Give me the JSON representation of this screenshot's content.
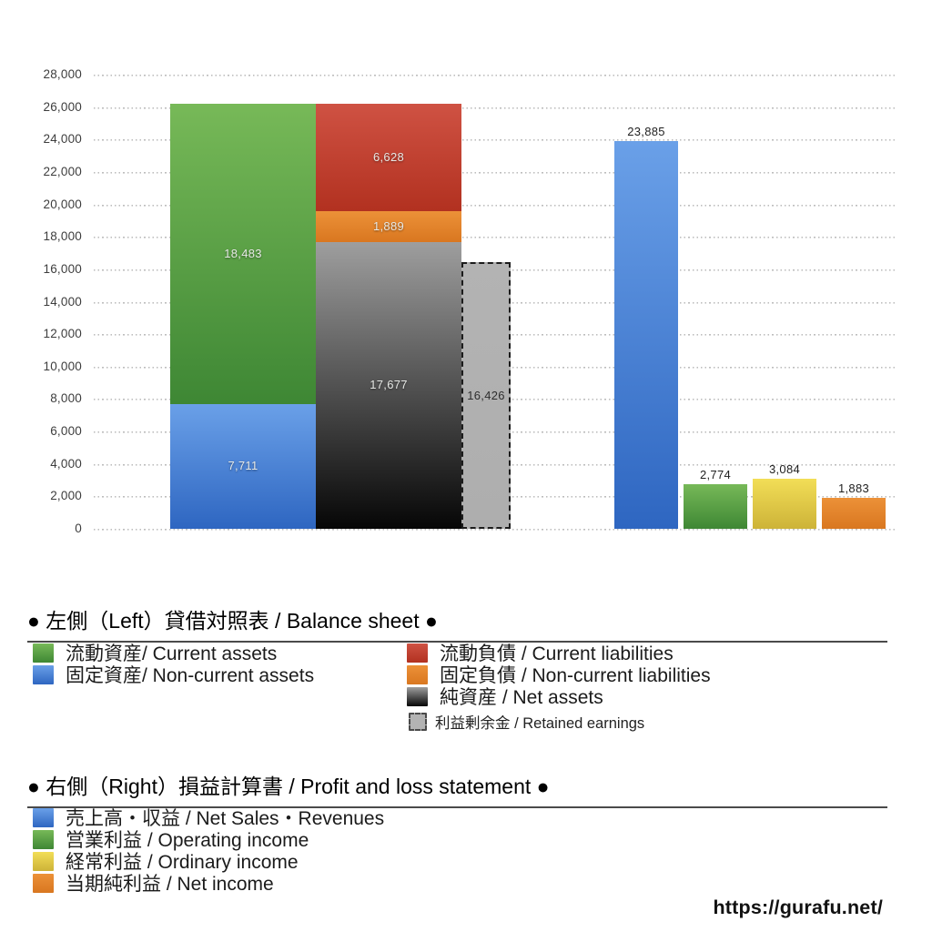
{
  "watermark": {
    "url": "https://gurafu.net/"
  },
  "chart_data": {
    "type": "bar",
    "title": "",
    "ylim": [
      0,
      28000
    ],
    "ytick_step": 2000,
    "grid": true,
    "value_labels": true,
    "groups": [
      {
        "name": "balance-sheet",
        "title": "左側（Left）貸借対照表 / Balance sheet",
        "bars": [
          {
            "name": "assets-bar",
            "kind": "stacked",
            "segments": [
              {
                "name": "non-current-assets",
                "label": "固定資産",
                "value": 7711,
                "color": "blue"
              },
              {
                "name": "current-assets",
                "label": "流動資産",
                "value": 18483,
                "color": "green"
              }
            ]
          },
          {
            "name": "liabilities-net-assets-bar",
            "kind": "stacked",
            "segments": [
              {
                "name": "net-assets",
                "label": "純資産",
                "value": 17677,
                "color": "netAssets"
              },
              {
                "name": "non-current-liabilities",
                "label": "固定負債",
                "value": 1889,
                "color": "orange"
              },
              {
                "name": "current-liabilities",
                "label": "流動負債",
                "value": 6628,
                "color": "red"
              }
            ]
          },
          {
            "name": "retained-earnings-bar",
            "kind": "dashed",
            "segments": [
              {
                "name": "retained-earnings",
                "label": "利益剰余金",
                "value": 16426,
                "color": "retained",
                "text": "dark"
              }
            ]
          }
        ]
      },
      {
        "name": "profit-loss",
        "title": "右側（Right）損益計算書 / Profit and loss statement",
        "bars": [
          {
            "name": "net-sales-bar",
            "kind": "simple",
            "label": "売上高・収益",
            "value": 23885,
            "color": "blue"
          },
          {
            "name": "operating-income-bar",
            "kind": "simple",
            "label": "営業利益",
            "value": 2774,
            "color": "green"
          },
          {
            "name": "ordinary-income-bar",
            "kind": "simple",
            "label": "経常利益",
            "value": 3084,
            "color": "yellow"
          },
          {
            "name": "net-income-bar",
            "kind": "simple",
            "label": "当期純利益",
            "value": 1883,
            "color": "orangeDeep"
          }
        ]
      }
    ]
  },
  "colors": {
    "blue": [
      "#6aa0e8",
      "#2e66c1"
    ],
    "green": [
      "#77b958",
      "#3e8734"
    ],
    "red": [
      "#cf5243",
      "#b23120"
    ],
    "orange": [
      "#ec9138",
      "#d97720"
    ],
    "orangeDeep": [
      "#ec9138",
      "#d97720"
    ],
    "yellow": [
      "#f2de57",
      "#cdb338"
    ],
    "netAssets": [
      "#9e9e9e",
      "#060606"
    ],
    "retained": [
      "#b3b3b3",
      "#aeaeae"
    ]
  },
  "legend": {
    "section1": {
      "title": "● 左側（Left）貸借対照表 / Balance sheet ●",
      "col1": [
        {
          "color": "green",
          "label": "流動資産/ Current assets"
        },
        {
          "color": "blue",
          "label": "固定資産/ Non-current assets"
        }
      ],
      "col2": [
        {
          "color": "red",
          "label": "流動負債 / Current liabilities"
        },
        {
          "color": "orange",
          "label": "固定負債 / Non-current liabilities"
        },
        {
          "color": "netAssets",
          "label": "純資産 / Net assets"
        },
        {
          "color": "retained",
          "label": "利益剰余金 / Retained earnings",
          "small": true,
          "dashed": true
        }
      ]
    },
    "section2": {
      "title": "● 右側（Right）損益計算書 / Profit and loss statement ●",
      "col1": [
        {
          "color": "blue",
          "label": "売上高・収益 / Net Sales・Revenues"
        },
        {
          "color": "green",
          "label": "営業利益 / Operating income"
        },
        {
          "color": "yellow",
          "label": "経常利益 / Ordinary income"
        },
        {
          "color": "orangeDeep",
          "label": "当期純利益 / Net income"
        }
      ]
    }
  }
}
